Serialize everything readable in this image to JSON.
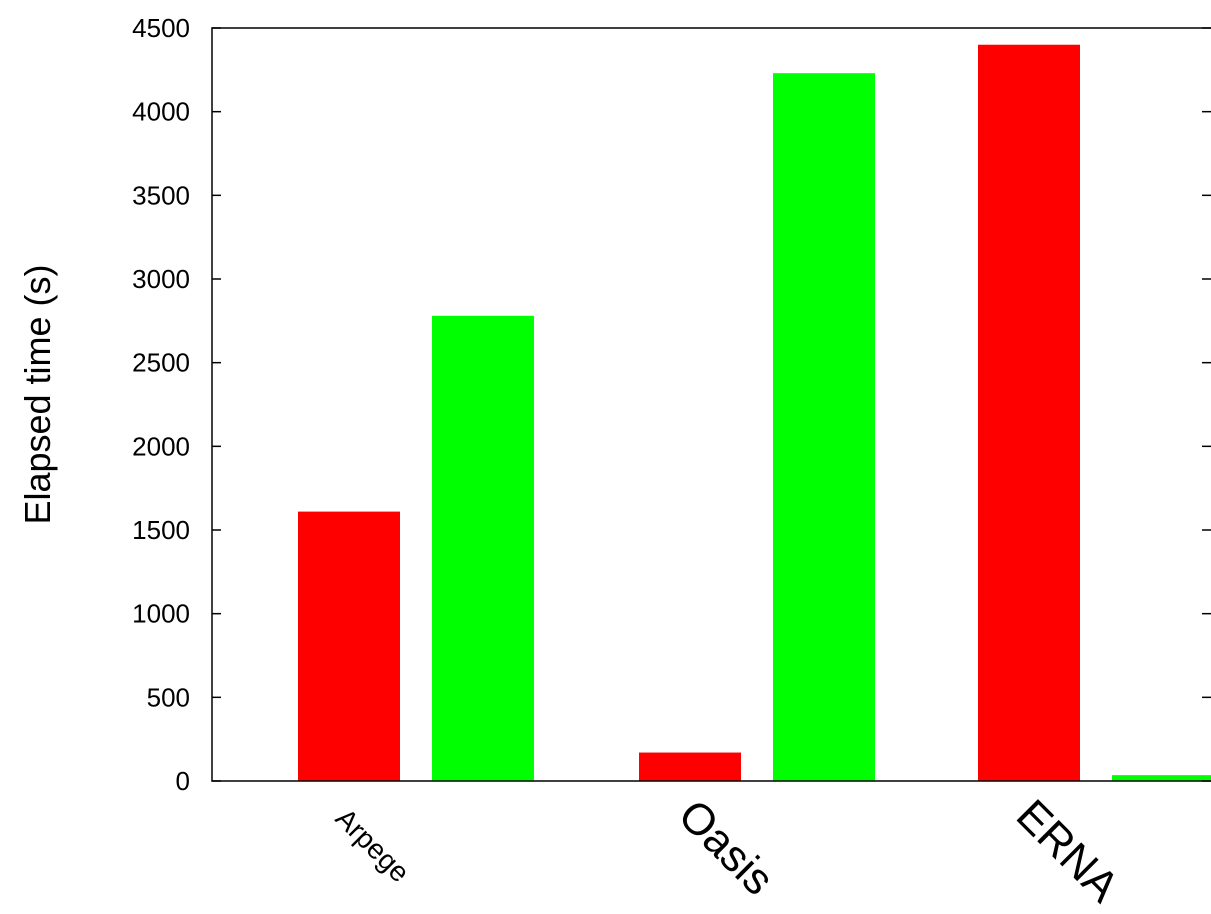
{
  "chart_data": {
    "type": "bar",
    "ylabel": "Elapsed time (s)",
    "xlabel": "",
    "ylim": [
      0,
      4500
    ],
    "yticks": [
      0,
      500,
      1000,
      1500,
      2000,
      2500,
      3000,
      3500,
      4000,
      4500
    ],
    "grid": false,
    "legend": "none",
    "categories": [
      "Arpege",
      "Oasis",
      "ERNA"
    ],
    "series": [
      {
        "color": "#ff0000",
        "values": [
          1610,
          170,
          4400
        ]
      },
      {
        "color": "#00ff00",
        "values": [
          2780,
          4230,
          35
        ]
      }
    ]
  }
}
